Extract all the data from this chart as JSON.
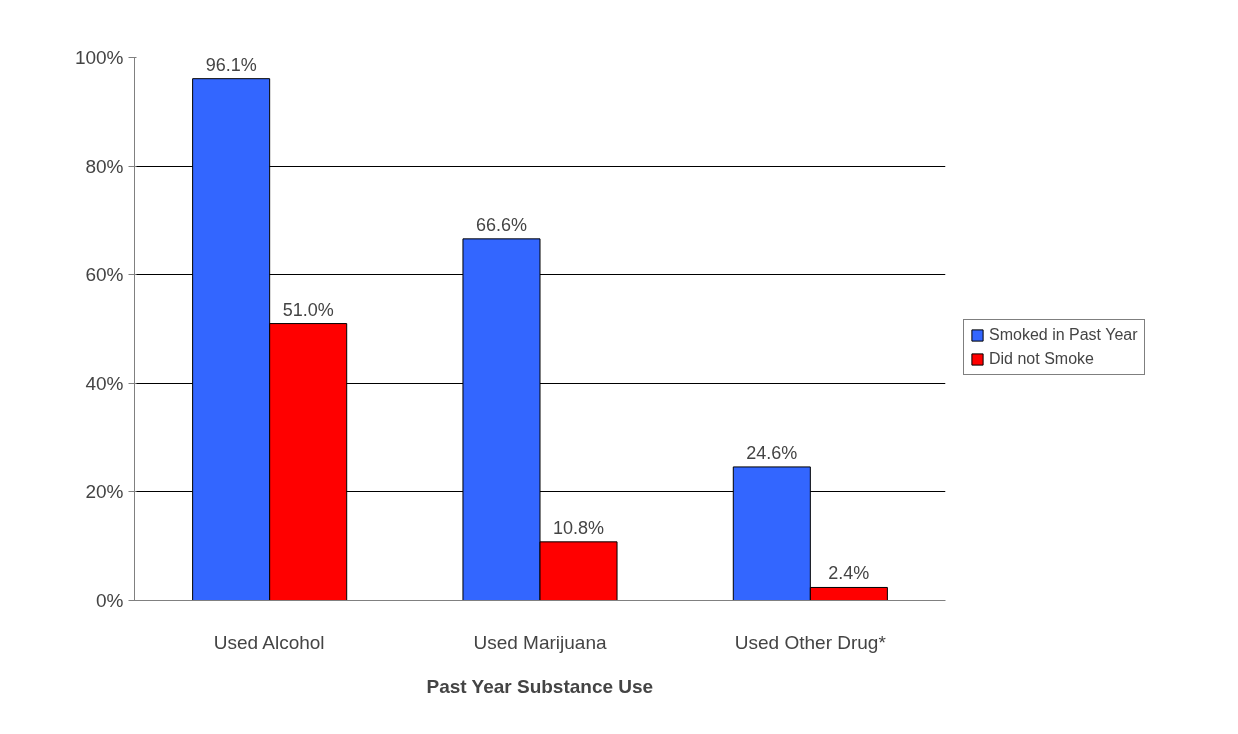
{
  "chart_data": {
    "type": "bar",
    "xlabel": "Past Year Substance Use",
    "categories": [
      "Used Alcohol",
      "Used Marijuana",
      "Used Other Drug*"
    ],
    "series": [
      {
        "name": "Smoked in Past Year",
        "color": "#3366ff",
        "values": [
          96.1,
          66.6,
          24.6
        ],
        "value_labels": [
          "96.1%",
          "66.6%",
          "24.6%"
        ]
      },
      {
        "name": "Did not Smoke",
        "color": "#ff0000",
        "values": [
          51.0,
          10.8,
          2.4
        ],
        "value_labels": [
          "51.0%",
          "10.8%",
          "2.4%"
        ]
      }
    ],
    "ylim": [
      0,
      100
    ],
    "yticks": [
      {
        "value": 0,
        "label": "0%"
      },
      {
        "value": 20,
        "label": "20%"
      },
      {
        "value": 40,
        "label": "40%"
      },
      {
        "value": 60,
        "label": "60%"
      },
      {
        "value": 80,
        "label": "80%"
      },
      {
        "value": 100,
        "label": "100%"
      }
    ],
    "grid": "y",
    "legend": "right"
  }
}
